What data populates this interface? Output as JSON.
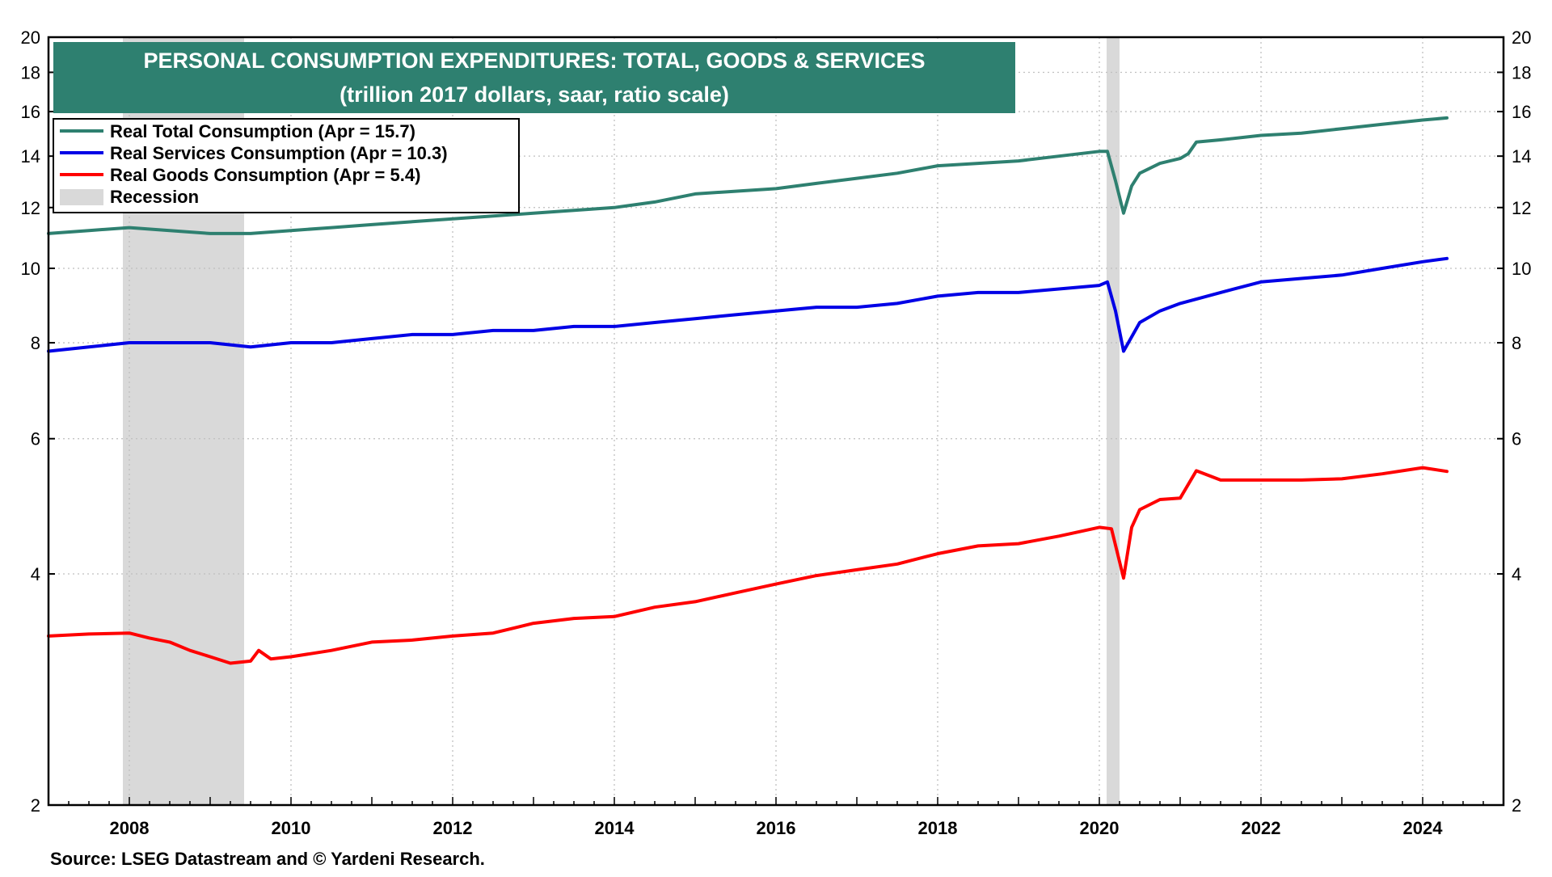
{
  "colors": {
    "total": "#2E8070",
    "services": "#0000E6",
    "goods": "#FF0000",
    "recession": "#D9D9D9",
    "title_bg": "#2E8070",
    "title_text": "#FFFFFF",
    "grid": "#BFBFBF",
    "axis": "#000000"
  },
  "chart_data": {
    "type": "line",
    "title": "PERSONAL CONSUMPTION EXPENDITURES: TOTAL, GOODS & SERVICES",
    "subtitle": "(trillion  2017 dollars, saar, ratio scale)",
    "source": "Source: LSEG Datastream and © Yardeni Research.",
    "y_scale": "log",
    "ylim": [
      2,
      20
    ],
    "xlim": [
      2007.0,
      2025.0
    ],
    "y_ticks": [
      2,
      4,
      6,
      8,
      10,
      12,
      14,
      16,
      18,
      20
    ],
    "y_tick_labels": [
      "2",
      "4",
      "6",
      "8",
      "10",
      "12",
      "14",
      "16",
      "18",
      "20"
    ],
    "x_ticks": [
      2008,
      2010,
      2012,
      2014,
      2016,
      2018,
      2020,
      2022,
      2024
    ],
    "x_tick_labels": [
      "2008",
      "2010",
      "2012",
      "2014",
      "2016",
      "2018",
      "2020",
      "2022",
      "2024"
    ],
    "grid": true,
    "legend_position": "top-left",
    "recessions": [
      {
        "start": 2007.92,
        "end": 2009.42
      },
      {
        "start": 2020.09,
        "end": 2020.25
      }
    ],
    "legend": [
      {
        "label": "Real Total Consumption  (Apr = 15.7)",
        "key": "total",
        "kind": "line"
      },
      {
        "label": "Real Services Consumption  (Apr = 10.3)",
        "key": "services",
        "kind": "line"
      },
      {
        "label": "Real Goods Consumption  (Apr = 5.4)",
        "key": "goods",
        "kind": "line"
      },
      {
        "label": "Recession",
        "key": "recession",
        "kind": "area"
      }
    ],
    "series": [
      {
        "name": "Real Total Consumption",
        "key": "total",
        "points": [
          [
            2007.0,
            11.1
          ],
          [
            2007.5,
            11.2
          ],
          [
            2008.0,
            11.3
          ],
          [
            2008.5,
            11.2
          ],
          [
            2009.0,
            11.1
          ],
          [
            2009.5,
            11.1
          ],
          [
            2010.0,
            11.2
          ],
          [
            2010.5,
            11.3
          ],
          [
            2011.0,
            11.4
          ],
          [
            2011.5,
            11.5
          ],
          [
            2012.0,
            11.6
          ],
          [
            2012.5,
            11.7
          ],
          [
            2013.0,
            11.8
          ],
          [
            2013.5,
            11.9
          ],
          [
            2014.0,
            12.0
          ],
          [
            2014.5,
            12.2
          ],
          [
            2015.0,
            12.5
          ],
          [
            2015.5,
            12.6
          ],
          [
            2016.0,
            12.7
          ],
          [
            2016.5,
            12.9
          ],
          [
            2017.0,
            13.1
          ],
          [
            2017.5,
            13.3
          ],
          [
            2018.0,
            13.6
          ],
          [
            2018.5,
            13.7
          ],
          [
            2019.0,
            13.8
          ],
          [
            2019.5,
            14.0
          ],
          [
            2020.0,
            14.2
          ],
          [
            2020.1,
            14.2
          ],
          [
            2020.2,
            13.0
          ],
          [
            2020.3,
            11.8
          ],
          [
            2020.4,
            12.8
          ],
          [
            2020.5,
            13.3
          ],
          [
            2020.75,
            13.7
          ],
          [
            2021.0,
            13.9
          ],
          [
            2021.1,
            14.1
          ],
          [
            2021.2,
            14.6
          ],
          [
            2021.5,
            14.7
          ],
          [
            2022.0,
            14.9
          ],
          [
            2022.5,
            15.0
          ],
          [
            2023.0,
            15.2
          ],
          [
            2023.5,
            15.4
          ],
          [
            2024.0,
            15.6
          ],
          [
            2024.3,
            15.7
          ]
        ]
      },
      {
        "name": "Real Services Consumption",
        "key": "services",
        "points": [
          [
            2007.0,
            7.8
          ],
          [
            2007.5,
            7.9
          ],
          [
            2008.0,
            8.0
          ],
          [
            2008.5,
            8.0
          ],
          [
            2009.0,
            8.0
          ],
          [
            2009.5,
            7.9
          ],
          [
            2010.0,
            8.0
          ],
          [
            2010.5,
            8.0
          ],
          [
            2011.0,
            8.1
          ],
          [
            2011.5,
            8.2
          ],
          [
            2012.0,
            8.2
          ],
          [
            2012.5,
            8.3
          ],
          [
            2013.0,
            8.3
          ],
          [
            2013.5,
            8.4
          ],
          [
            2014.0,
            8.4
          ],
          [
            2014.5,
            8.5
          ],
          [
            2015.0,
            8.6
          ],
          [
            2015.5,
            8.7
          ],
          [
            2016.0,
            8.8
          ],
          [
            2016.5,
            8.9
          ],
          [
            2017.0,
            8.9
          ],
          [
            2017.5,
            9.0
          ],
          [
            2018.0,
            9.2
          ],
          [
            2018.5,
            9.3
          ],
          [
            2019.0,
            9.3
          ],
          [
            2019.5,
            9.4
          ],
          [
            2020.0,
            9.5
          ],
          [
            2020.1,
            9.6
          ],
          [
            2020.2,
            8.8
          ],
          [
            2020.3,
            7.8
          ],
          [
            2020.5,
            8.5
          ],
          [
            2020.75,
            8.8
          ],
          [
            2021.0,
            9.0
          ],
          [
            2021.5,
            9.3
          ],
          [
            2022.0,
            9.6
          ],
          [
            2022.5,
            9.7
          ],
          [
            2023.0,
            9.8
          ],
          [
            2023.5,
            10.0
          ],
          [
            2024.0,
            10.2
          ],
          [
            2024.3,
            10.3
          ]
        ]
      },
      {
        "name": "Real Goods Consumption",
        "key": "goods",
        "points": [
          [
            2007.0,
            3.32
          ],
          [
            2007.5,
            3.34
          ],
          [
            2008.0,
            3.35
          ],
          [
            2008.25,
            3.3
          ],
          [
            2008.5,
            3.26
          ],
          [
            2008.75,
            3.18
          ],
          [
            2009.0,
            3.12
          ],
          [
            2009.25,
            3.06
          ],
          [
            2009.5,
            3.08
          ],
          [
            2009.6,
            3.18
          ],
          [
            2009.75,
            3.1
          ],
          [
            2010.0,
            3.12
          ],
          [
            2010.5,
            3.18
          ],
          [
            2011.0,
            3.26
          ],
          [
            2011.5,
            3.28
          ],
          [
            2012.0,
            3.32
          ],
          [
            2012.5,
            3.35
          ],
          [
            2013.0,
            3.45
          ],
          [
            2013.5,
            3.5
          ],
          [
            2014.0,
            3.52
          ],
          [
            2014.5,
            3.62
          ],
          [
            2015.0,
            3.68
          ],
          [
            2015.5,
            3.78
          ],
          [
            2016.0,
            3.88
          ],
          [
            2016.5,
            3.98
          ],
          [
            2017.0,
            4.05
          ],
          [
            2017.5,
            4.12
          ],
          [
            2018.0,
            4.25
          ],
          [
            2018.5,
            4.35
          ],
          [
            2019.0,
            4.38
          ],
          [
            2019.5,
            4.48
          ],
          [
            2020.0,
            4.6
          ],
          [
            2020.15,
            4.58
          ],
          [
            2020.3,
            3.95
          ],
          [
            2020.4,
            4.6
          ],
          [
            2020.5,
            4.85
          ],
          [
            2020.75,
            5.0
          ],
          [
            2021.0,
            5.02
          ],
          [
            2021.2,
            5.45
          ],
          [
            2021.5,
            5.3
          ],
          [
            2022.0,
            5.3
          ],
          [
            2022.5,
            5.3
          ],
          [
            2023.0,
            5.32
          ],
          [
            2023.5,
            5.4
          ],
          [
            2024.0,
            5.5
          ],
          [
            2024.3,
            5.44
          ]
        ]
      }
    ]
  }
}
